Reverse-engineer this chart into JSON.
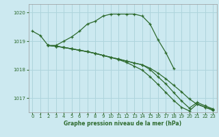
{
  "background_color": "#cce9f0",
  "grid_color": "#aed4dc",
  "line_color": "#2d6a2d",
  "title": "Graphe pression niveau de la mer (hPa)",
  "xlim": [
    -0.5,
    23.5
  ],
  "ylim": [
    1016.5,
    1020.3
  ],
  "yticks": [
    1017,
    1018,
    1019,
    1020
  ],
  "xticks": [
    0,
    1,
    2,
    3,
    4,
    5,
    6,
    7,
    8,
    9,
    10,
    11,
    12,
    13,
    14,
    15,
    16,
    17,
    18,
    19,
    20,
    21,
    22,
    23
  ],
  "lines": [
    {
      "x": [
        0,
        1,
        2,
        3,
        4,
        5,
        6,
        7,
        8,
        9,
        10,
        11,
        12,
        13,
        14,
        15,
        16,
        17,
        18
      ],
      "y": [
        1019.35,
        1019.2,
        1018.85,
        1018.85,
        1019.0,
        1019.15,
        1019.35,
        1019.6,
        1019.7,
        1019.88,
        1019.95,
        1019.95,
        1019.95,
        1019.95,
        1019.88,
        1019.6,
        1019.05,
        1018.6,
        1018.05
      ]
    },
    {
      "x": [
        2,
        3,
        4,
        5,
        6,
        7,
        8,
        9,
        10,
        11,
        12,
        13,
        14,
        15,
        16,
        17,
        18,
        19,
        20,
        21,
        22,
        23
      ],
      "y": [
        1018.85,
        1018.82,
        1018.78,
        1018.73,
        1018.68,
        1018.63,
        1018.57,
        1018.5,
        1018.43,
        1018.37,
        1018.3,
        1018.23,
        1018.17,
        1018.05,
        1017.88,
        1017.68,
        1017.45,
        1017.22,
        1016.97,
        1016.78,
        1016.68,
        1016.6
      ]
    },
    {
      "x": [
        2,
        3,
        4,
        5,
        6,
        7,
        8,
        9,
        10,
        11,
        12,
        13,
        14,
        15,
        16,
        17,
        18,
        19,
        20,
        21,
        22,
        23
      ],
      "y": [
        1018.85,
        1018.82,
        1018.78,
        1018.73,
        1018.68,
        1018.63,
        1018.57,
        1018.5,
        1018.43,
        1018.37,
        1018.3,
        1018.23,
        1018.17,
        1018.0,
        1017.75,
        1017.5,
        1017.2,
        1016.9,
        1016.65,
        1016.85,
        1016.73,
        1016.62
      ]
    },
    {
      "x": [
        2,
        3,
        4,
        5,
        6,
        7,
        8,
        9,
        10,
        11,
        12,
        13,
        14,
        15,
        16,
        17,
        18,
        19,
        20,
        21,
        22,
        23
      ],
      "y": [
        1018.85,
        1018.82,
        1018.78,
        1018.73,
        1018.68,
        1018.63,
        1018.57,
        1018.5,
        1018.43,
        1018.35,
        1018.25,
        1018.12,
        1017.98,
        1017.75,
        1017.48,
        1017.2,
        1016.92,
        1016.68,
        1016.55,
        1016.8,
        1016.68,
        1016.57
      ]
    }
  ]
}
